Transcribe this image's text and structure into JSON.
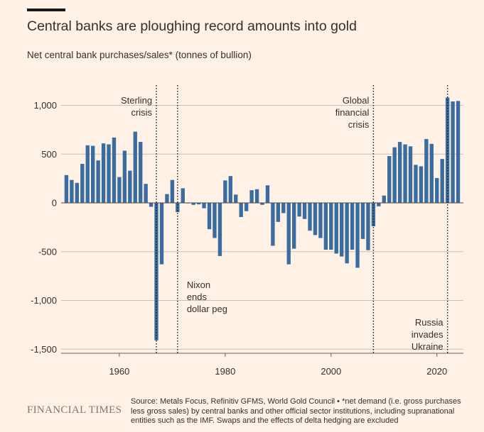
{
  "header": {
    "title": "Central banks are ploughing record amounts into gold",
    "subtitle": "Net central bank purchases/sales* (tonnes of bullion)"
  },
  "footer": {
    "brand": "FINANCIAL TIMES",
    "source": "Source: Metals Focus, Refinitiv GFMS, World Gold Council • *net demand (i.e. gross purchases less gross sales) by central banks and other official sector institutions, including supranational entities such as the IMF. Swaps and the effects of delta hedging are excluded"
  },
  "colors": {
    "background": "#fff1e5",
    "bar": "#3a6c9f",
    "text": "#33302e",
    "grid": "#c9bfb6",
    "zero": "#4d4845"
  },
  "chart_data": {
    "type": "bar",
    "title": "Central banks are ploughing record amounts into gold",
    "ylabel": "Net central bank purchases/sales* (tonnes of bullion)",
    "xlabel": "",
    "ylim": [
      -1600,
      1250
    ],
    "xlim": [
      1949,
      2025
    ],
    "yticks": [
      1000,
      500,
      0,
      -500,
      -1000,
      -1500
    ],
    "ytick_labels": [
      "1,000",
      "500",
      "0",
      "-500",
      "-1,000",
      "-1,500"
    ],
    "xticks": [
      1960,
      1980,
      2000,
      2020
    ],
    "xtick_labels": [
      "1960",
      "1980",
      "2000",
      "2020"
    ],
    "years": [
      1950,
      1951,
      1952,
      1953,
      1954,
      1955,
      1956,
      1957,
      1958,
      1959,
      1960,
      1961,
      1962,
      1963,
      1964,
      1965,
      1966,
      1967,
      1968,
      1969,
      1970,
      1971,
      1972,
      1973,
      1974,
      1975,
      1976,
      1977,
      1978,
      1979,
      1980,
      1981,
      1982,
      1983,
      1984,
      1985,
      1986,
      1987,
      1988,
      1989,
      1990,
      1991,
      1992,
      1993,
      1994,
      1995,
      1996,
      1997,
      1998,
      1999,
      2000,
      2001,
      2002,
      2003,
      2004,
      2005,
      2006,
      2007,
      2008,
      2009,
      2010,
      2011,
      2012,
      2013,
      2014,
      2015,
      2016,
      2017,
      2018,
      2019,
      2020,
      2021,
      2022,
      2023,
      2024
    ],
    "values": [
      285,
      235,
      205,
      400,
      590,
      585,
      435,
      610,
      600,
      670,
      265,
      535,
      330,
      730,
      625,
      195,
      -40,
      -1410,
      -630,
      90,
      235,
      -95,
      150,
      -5,
      -20,
      -15,
      -55,
      -270,
      -360,
      -545,
      230,
      275,
      85,
      -145,
      -85,
      130,
      140,
      -20,
      180,
      -440,
      -195,
      -105,
      -630,
      -470,
      -140,
      -165,
      -285,
      -330,
      -360,
      -480,
      -480,
      -520,
      -550,
      -620,
      -480,
      -665,
      -370,
      -485,
      -240,
      -35,
      75,
      480,
      570,
      625,
      600,
      580,
      390,
      375,
      655,
      605,
      255,
      450,
      1080,
      1040,
      1045
    ],
    "annotations": [
      {
        "year": 1967,
        "lines": [
          "Sterling",
          "crisis"
        ],
        "align": "end"
      },
      {
        "year": 1971,
        "lines": [
          "Nixon",
          "ends",
          "dollar peg"
        ],
        "align": "start"
      },
      {
        "year": 2008,
        "lines": [
          "Global",
          "financial",
          "crisis"
        ],
        "align": "end"
      },
      {
        "year": 2022,
        "lines": [
          "Russia",
          "invades",
          "Ukraine"
        ],
        "align": "end"
      }
    ]
  }
}
